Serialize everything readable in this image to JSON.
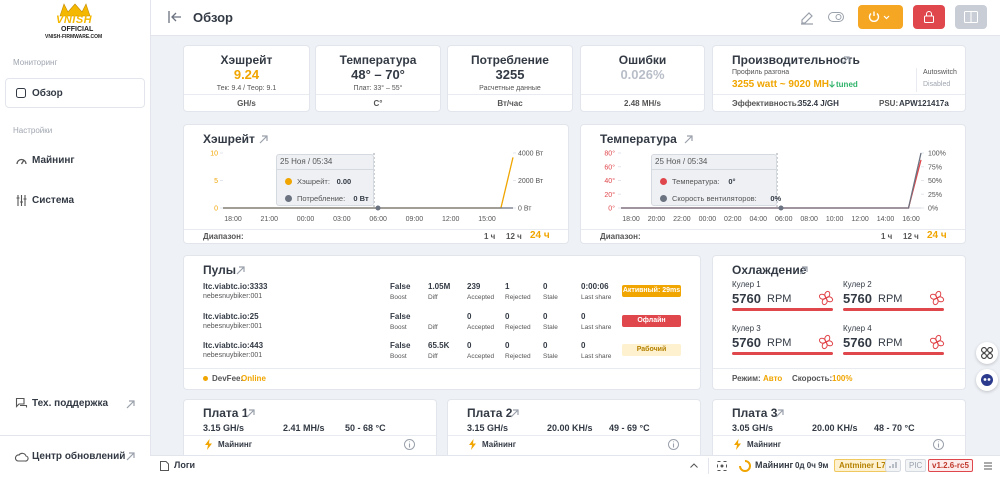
{
  "sidebar": {
    "logo": [
      "VNISH",
      "OFFICIAL",
      "VNISH-FIRMWARE.COM"
    ],
    "monitoring": "Мониторинг",
    "overview": "Обзор",
    "settings": "Настройки",
    "mining": "Майнинг",
    "system": "Система",
    "support": "Тех. поддержка",
    "updates": "Центр обновлений"
  },
  "header": {
    "title": "Обзор"
  },
  "stats": [
    {
      "title": "Хэшрейт",
      "value": "9.24",
      "sub": "Тек: 9.4 / Теор: 9.1",
      "unit": "GH/s",
      "color": "#f0a500"
    },
    {
      "title": "Температура",
      "value": "48° – 70°",
      "sub": "Плат: 33° – 55°",
      "unit": "C°",
      "color": "#333a44"
    },
    {
      "title": "Потребление",
      "value": "3255",
      "sub": "Расчетные данные",
      "unit": "Вт/час",
      "color": "#333a44"
    },
    {
      "title": "Ошибки",
      "value": "0.026%",
      "unit": "2.48 MH/s",
      "color": "#b8bec8"
    }
  ],
  "performance": {
    "title": "Производительность",
    "profile_label": "Профиль разгона",
    "profile": "3255 watt ~ 9020 MH",
    "tuned": "tuned",
    "autoswitch": "Autoswitch",
    "autoswitch_state": "Disabled",
    "efficiency_label": "Эффективность:",
    "efficiency": "352.4 J/GH",
    "psu_label": "PSU:",
    "psu": "APW121417a"
  },
  "hash_chart": {
    "title": "Хэшрейт",
    "ylim": [
      0,
      10
    ],
    "yticks": [
      0,
      5,
      10
    ],
    "y2lim": [
      0,
      4000
    ],
    "y2ticks": [
      {
        "value": 0,
        "label": "0 Вт"
      },
      {
        "value": 2000,
        "label": "2000 Вт"
      },
      {
        "value": 4000,
        "label": "4000 Вт"
      }
    ],
    "x_labels": [
      "18:00",
      "21:00",
      "00:00",
      "03:00",
      "06:00",
      "09:00",
      "12:00",
      "15:00"
    ],
    "series": [
      {
        "name": "Хэшрейт:",
        "color": "#f0a500",
        "values": [
          0,
          0,
          0,
          0,
          0,
          0,
          0,
          0,
          0,
          0,
          0,
          0,
          0,
          0,
          0,
          0,
          0,
          0,
          0,
          0,
          0,
          0,
          0,
          0,
          9.2
        ],
        "current": "0.00"
      },
      {
        "name": "Потребление:",
        "color": "#6b7280",
        "axis": "y2",
        "values": [
          0,
          0,
          0,
          0,
          0,
          0,
          0,
          0,
          0,
          0,
          0,
          0,
          0,
          0,
          0,
          0,
          0,
          0,
          0,
          0,
          0,
          0,
          0,
          0,
          0
        ],
        "current": "0 Вт"
      }
    ],
    "tooltip_date": "25 Ноя / 05:34",
    "range_label": "Диапазон:",
    "range_options": [
      "1 ч",
      "12 ч",
      "24 ч"
    ]
  },
  "temp_chart": {
    "title": "Температура",
    "ylim": [
      0,
      80
    ],
    "yticks": [
      {
        "value": 0,
        "label": "0°"
      },
      {
        "value": 20,
        "label": "20°"
      },
      {
        "value": 40,
        "label": "40°"
      },
      {
        "value": 60,
        "label": "60°"
      },
      {
        "value": 80,
        "label": "80°"
      }
    ],
    "y2lim": [
      0,
      100
    ],
    "y2ticks": [
      {
        "value": 0,
        "label": "0%"
      },
      {
        "value": 25,
        "label": "25%"
      },
      {
        "value": 50,
        "label": "50%"
      },
      {
        "value": 75,
        "label": "75%"
      },
      {
        "value": 100,
        "label": "100%"
      }
    ],
    "x_labels": [
      "18:00",
      "20:00",
      "22:00",
      "00:00",
      "02:00",
      "04:00",
      "06:00",
      "08:00",
      "10:00",
      "12:00",
      "14:00",
      "16:00"
    ],
    "series": [
      {
        "name": "Температура:",
        "color": "#e0474c",
        "values": [
          0,
          0,
          0,
          0,
          0,
          0,
          0,
          0,
          0,
          0,
          0,
          0,
          0,
          0,
          0,
          0,
          0,
          0,
          0,
          0,
          0,
          0,
          0,
          0,
          70
        ],
        "current": "0°"
      },
      {
        "name": "Скорость вентиляторов:",
        "color": "#6b7280",
        "axis": "y2",
        "values": [
          0,
          0,
          0,
          0,
          0,
          0,
          0,
          0,
          0,
          0,
          0,
          0,
          0,
          0,
          0,
          0,
          0,
          0,
          0,
          0,
          0,
          0,
          0,
          0,
          100
        ],
        "current": "0%"
      }
    ],
    "tooltip_date": "25 Ноя / 05:34",
    "range_label": "Диапазон:",
    "range_options": [
      "1 ч",
      "12 ч",
      "24 ч"
    ]
  },
  "pools": {
    "title": "Пулы",
    "columns": {
      "boost": "Boost",
      "diff": "Diff",
      "accepted": "Accepted",
      "rejected": "Rejected",
      "stale": "Stale",
      "last_share": "Last share"
    },
    "rows": [
      {
        "url": "ltc.viabtc.io:3333",
        "user": "nebesnuybiker:001",
        "boost": "False",
        "diff": "1.05M",
        "accepted": 239,
        "rejected": 1,
        "stale": 0,
        "last_share": "0:00:06",
        "status": "Активный: 29ms",
        "status_color": "#f0a500",
        "status_text_color": "#ffffff"
      },
      {
        "url": "ltc.viabtc.io:25",
        "user": "nebesnuybiker:001",
        "boost": "False",
        "accepted": 0,
        "rejected": 0,
        "stale": 0,
        "last_share": "0",
        "status": "Офлайн",
        "status_color": "#e0474c",
        "status_text_color": "#ffffff"
      },
      {
        "url": "ltc.viabtc.io:443",
        "user": "nebesnuybiker:001",
        "boost": "False",
        "diff": "65.5K",
        "accepted": 0,
        "rejected": 0,
        "stale": 0,
        "last_share": "0",
        "status": "Рабочий",
        "status_color": "#fdf1cf",
        "status_text_color": "#b58100"
      }
    ],
    "devfee_label": "DevFee:",
    "devfee": "Online"
  },
  "cooling": {
    "title": "Охлаждение",
    "unit": "RPM",
    "coolers": [
      {
        "name": "Кулер 1",
        "rpm": 5760
      },
      {
        "name": "Кулер 2",
        "rpm": 5760
      },
      {
        "name": "Кулер 3",
        "rpm": 5760
      },
      {
        "name": "Кулер 4",
        "rpm": 5760
      }
    ],
    "mode_label": "Режим:",
    "mode": "Авто",
    "speed_label": "Скорость:",
    "speed": "100%"
  },
  "boards": [
    {
      "name": "Плата 1",
      "hashrate": "3.15 GH/s",
      "errors": "2.41 MH/s",
      "temp": "50 - 68 °C",
      "status": "Майнинг"
    },
    {
      "name": "Плата 2",
      "hashrate": "3.15 GH/s",
      "errors": "20.00 KH/s",
      "temp": "49 - 69 °C",
      "status": "Майнинг"
    },
    {
      "name": "Плата 3",
      "hashrate": "3.05 GH/s",
      "errors": "20.00 KH/s",
      "temp": "48 - 70 °C",
      "status": "Майнинг"
    }
  ],
  "footer": {
    "logs": "Логи",
    "status": "Майнинг",
    "uptime": "0д 0ч 9м",
    "model": "Antminer L7",
    "pic": "PIC",
    "version": "v1.2.6-rc5"
  }
}
